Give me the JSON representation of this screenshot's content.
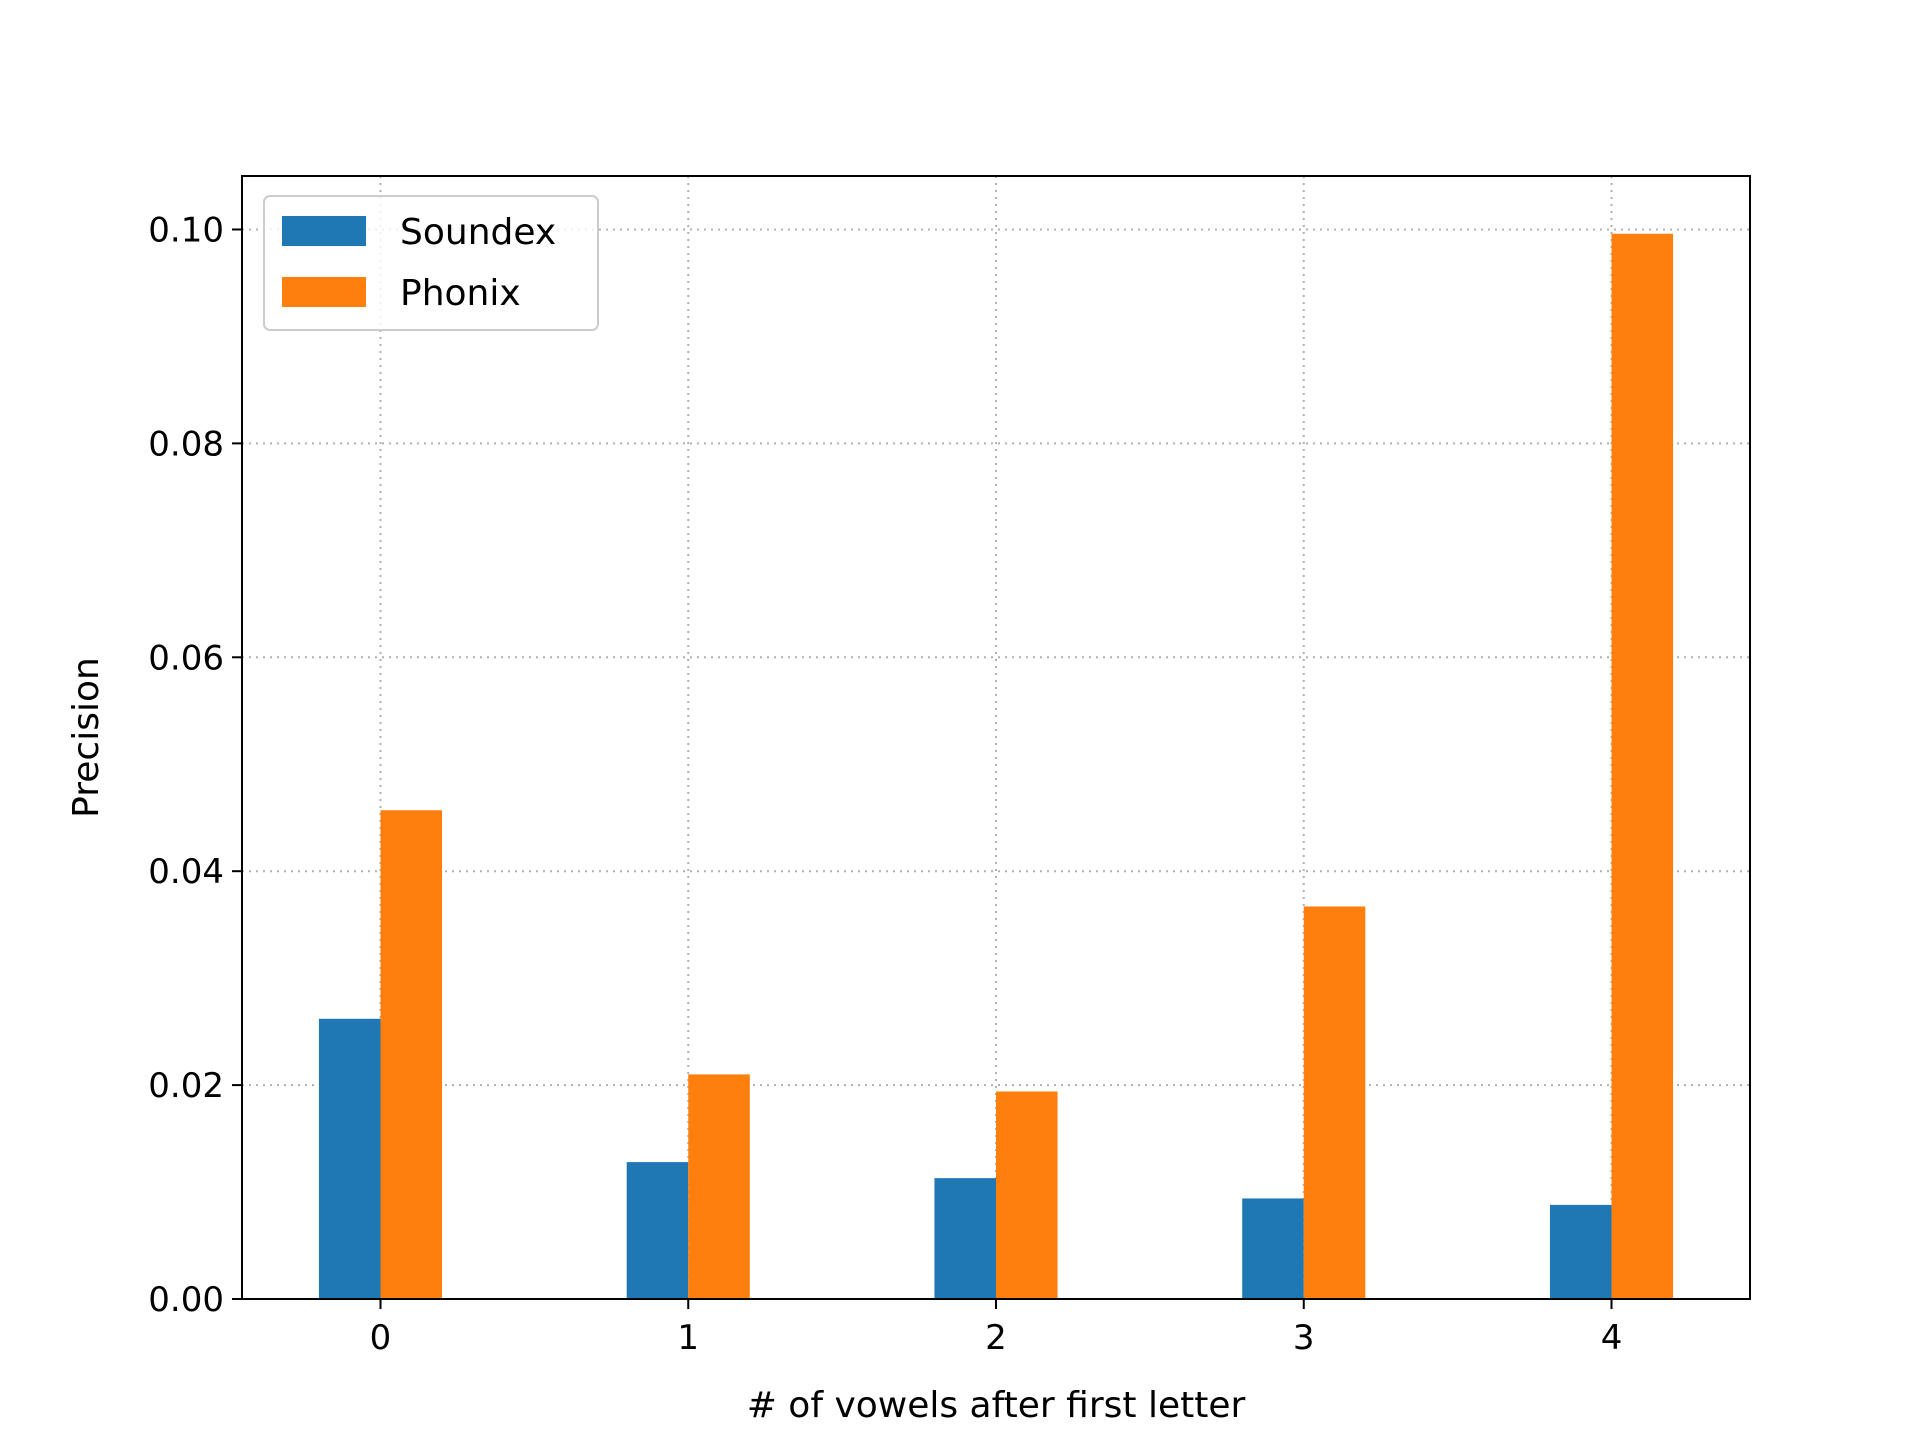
{
  "chart_data": {
    "type": "bar",
    "title": "",
    "xlabel": "# of vowels after first letter",
    "ylabel": "Precision",
    "categories": [
      "0",
      "1",
      "2",
      "3",
      "4"
    ],
    "series": [
      {
        "name": "Soundex",
        "color": "#1f77b4",
        "values": [
          0.0262,
          0.0128,
          0.0113,
          0.0094,
          0.0088
        ]
      },
      {
        "name": "Phonix",
        "color": "#ff7f0e",
        "values": [
          0.0457,
          0.021,
          0.0194,
          0.0367,
          0.0996
        ]
      }
    ],
    "ylim": [
      0,
      0.105
    ],
    "yticks": [
      "0.00",
      "0.02",
      "0.04",
      "0.06",
      "0.08",
      "0.10"
    ],
    "grid": true,
    "legend_position": "top-left"
  }
}
